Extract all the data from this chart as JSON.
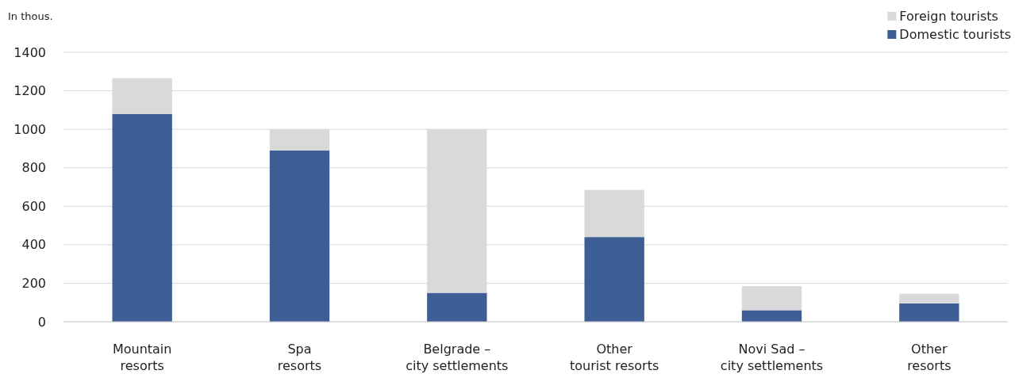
{
  "chart_data": {
    "type": "bar",
    "stacked": true,
    "ylabel": "In thous.",
    "categories": [
      "Mountain\nresorts",
      "Spa\nresorts",
      "Belgrade –\ncity settlements",
      "Other\ntourist resorts",
      "Novi Sad –\ncity settlements",
      "Other\nresorts"
    ],
    "series": [
      {
        "name": "Domestic tourists",
        "color": "#3e5f96",
        "values": [
          1080,
          890,
          150,
          440,
          60,
          95
        ]
      },
      {
        "name": "Foreign tourists",
        "color": "#d9d9d9",
        "values": [
          185,
          110,
          850,
          245,
          125,
          50
        ]
      }
    ],
    "ylim": [
      0,
      1400
    ],
    "yticks": [
      0,
      200,
      400,
      600,
      800,
      1000,
      1200,
      1400
    ],
    "grid": "y",
    "legend": "top right"
  }
}
